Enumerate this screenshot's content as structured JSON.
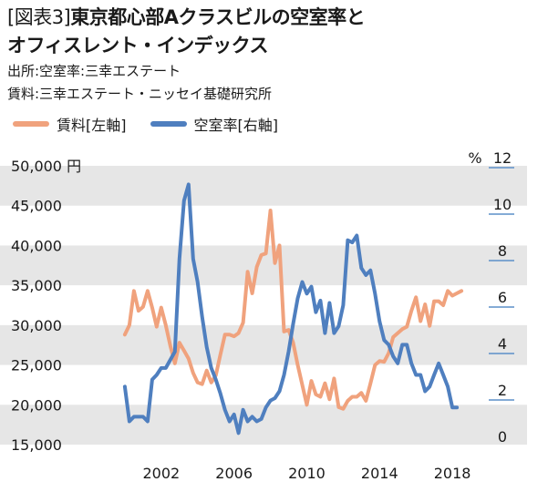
{
  "header": {
    "figure_label": "[図表3]",
    "title_line1": "東京都心部Aクラスビルの空室率と",
    "title_line2": "オフィスレント・インデックス",
    "source_line1": "出所:空室率:三幸エステート",
    "source_line2": "賃料:三幸エステート・ニッセイ基礎研究所"
  },
  "colors": {
    "rent": "#f0a27d",
    "vacancy": "#4f7fbf",
    "band": "#e6e6e6",
    "right_tick_line": "#5b8fc9"
  },
  "chart_data": {
    "type": "line",
    "legend": [
      {
        "label": "賃料[左軸]",
        "color": "#f0a27d"
      },
      {
        "label": "空室率[右軸]",
        "color": "#4f7fbf"
      }
    ],
    "left_axis": {
      "unit": "円",
      "ylim": [
        15000,
        50000
      ],
      "ticks": [
        "15,000",
        "20,000",
        "25,000",
        "30,000",
        "35,000",
        "40,000",
        "45,000",
        "50,000 円"
      ]
    },
    "right_axis": {
      "unit": "%",
      "ylim": [
        0,
        12
      ],
      "ticks": [
        "0",
        "2",
        "4",
        "6",
        "8",
        "10",
        "12"
      ],
      "unit_label": "%"
    },
    "x_axis": {
      "xlim": [
        1998.5,
        2020.0
      ],
      "ticks": [
        "2002",
        "2006",
        "2010",
        "2014",
        "2018"
      ]
    },
    "series": [
      {
        "name": "賃料[左軸]",
        "axis": "left",
        "color": "#f0a27d",
        "points": [
          [
            2000.0,
            28800
          ],
          [
            2000.25,
            30000
          ],
          [
            2000.5,
            34300
          ],
          [
            2000.75,
            31800
          ],
          [
            2001.0,
            32300
          ],
          [
            2001.25,
            34300
          ],
          [
            2001.5,
            32200
          ],
          [
            2001.75,
            29800
          ],
          [
            2002.0,
            32200
          ],
          [
            2002.25,
            30000
          ],
          [
            2002.5,
            27400
          ],
          [
            2002.75,
            25200
          ],
          [
            2003.0,
            27800
          ],
          [
            2003.25,
            26800
          ],
          [
            2003.5,
            25800
          ],
          [
            2003.75,
            24000
          ],
          [
            2004.0,
            22800
          ],
          [
            2004.25,
            22600
          ],
          [
            2004.5,
            24300
          ],
          [
            2004.75,
            22800
          ],
          [
            2005.0,
            23700
          ],
          [
            2005.25,
            26300
          ],
          [
            2005.5,
            28800
          ],
          [
            2005.75,
            28800
          ],
          [
            2006.0,
            28600
          ],
          [
            2006.25,
            29000
          ],
          [
            2006.5,
            30300
          ],
          [
            2006.75,
            36700
          ],
          [
            2007.0,
            34000
          ],
          [
            2007.25,
            37300
          ],
          [
            2007.5,
            38800
          ],
          [
            2007.75,
            39000
          ],
          [
            2008.0,
            44400
          ],
          [
            2008.25,
            37800
          ],
          [
            2008.5,
            40000
          ],
          [
            2008.75,
            29200
          ],
          [
            2009.0,
            29400
          ],
          [
            2009.25,
            27800
          ],
          [
            2009.5,
            25000
          ],
          [
            2009.75,
            22500
          ],
          [
            2010.0,
            20000
          ],
          [
            2010.25,
            23000
          ],
          [
            2010.5,
            21300
          ],
          [
            2010.75,
            21000
          ],
          [
            2011.0,
            22700
          ],
          [
            2011.25,
            20700
          ],
          [
            2011.5,
            23300
          ],
          [
            2011.75,
            19700
          ],
          [
            2012.0,
            19500
          ],
          [
            2012.25,
            20500
          ],
          [
            2012.5,
            21000
          ],
          [
            2012.75,
            21000
          ],
          [
            2013.0,
            21500
          ],
          [
            2013.25,
            20500
          ],
          [
            2013.5,
            22700
          ],
          [
            2013.75,
            25000
          ],
          [
            2014.0,
            25500
          ],
          [
            2014.25,
            25400
          ],
          [
            2014.5,
            26500
          ],
          [
            2014.75,
            28500
          ],
          [
            2015.0,
            29000
          ],
          [
            2015.25,
            29500
          ],
          [
            2015.5,
            29800
          ],
          [
            2015.75,
            31800
          ],
          [
            2016.0,
            33500
          ],
          [
            2016.25,
            30500
          ],
          [
            2016.5,
            32600
          ],
          [
            2016.75,
            29900
          ],
          [
            2017.0,
            33000
          ],
          [
            2017.25,
            33000
          ],
          [
            2017.5,
            32500
          ],
          [
            2017.75,
            34300
          ],
          [
            2018.0,
            33700
          ],
          [
            2018.25,
            34000
          ],
          [
            2018.5,
            34300
          ]
        ]
      },
      {
        "name": "空室率[右軸]",
        "axis": "right",
        "color": "#4f7fbf",
        "points": [
          [
            2000.0,
            2.5
          ],
          [
            2000.25,
            1.0
          ],
          [
            2000.5,
            1.2
          ],
          [
            2000.75,
            1.2
          ],
          [
            2001.0,
            1.2
          ],
          [
            2001.25,
            1.0
          ],
          [
            2001.5,
            2.8
          ],
          [
            2001.75,
            3.0
          ],
          [
            2002.0,
            3.3
          ],
          [
            2002.25,
            3.3
          ],
          [
            2002.75,
            4.0
          ],
          [
            2003.0,
            8.0
          ],
          [
            2003.25,
            10.5
          ],
          [
            2003.5,
            11.2
          ],
          [
            2003.75,
            8.0
          ],
          [
            2004.0,
            7.0
          ],
          [
            2004.25,
            5.5
          ],
          [
            2004.5,
            4.2
          ],
          [
            2004.75,
            3.3
          ],
          [
            2005.0,
            2.8
          ],
          [
            2005.25,
            2.2
          ],
          [
            2005.5,
            1.5
          ],
          [
            2005.75,
            1.0
          ],
          [
            2006.0,
            1.3
          ],
          [
            2006.25,
            0.5
          ],
          [
            2006.5,
            1.5
          ],
          [
            2006.75,
            1.0
          ],
          [
            2007.0,
            1.2
          ],
          [
            2007.25,
            1.0
          ],
          [
            2007.5,
            1.1
          ],
          [
            2007.75,
            1.6
          ],
          [
            2008.0,
            1.9
          ],
          [
            2008.25,
            2.0
          ],
          [
            2008.5,
            2.3
          ],
          [
            2008.75,
            3.0
          ],
          [
            2009.0,
            4.0
          ],
          [
            2009.25,
            5.2
          ],
          [
            2009.5,
            6.3
          ],
          [
            2009.75,
            7.0
          ],
          [
            2010.0,
            6.5
          ],
          [
            2010.25,
            6.8
          ],
          [
            2010.5,
            5.7
          ],
          [
            2010.75,
            6.2
          ],
          [
            2011.0,
            4.8
          ],
          [
            2011.25,
            6.1
          ],
          [
            2011.5,
            4.8
          ],
          [
            2011.75,
            5.1
          ],
          [
            2012.0,
            6.0
          ],
          [
            2012.25,
            8.8
          ],
          [
            2012.5,
            8.7
          ],
          [
            2012.75,
            9.0
          ],
          [
            2013.0,
            7.6
          ],
          [
            2013.25,
            7.3
          ],
          [
            2013.5,
            7.5
          ],
          [
            2013.75,
            6.5
          ],
          [
            2014.0,
            5.3
          ],
          [
            2014.25,
            4.5
          ],
          [
            2014.5,
            4.3
          ],
          [
            2014.75,
            3.8
          ],
          [
            2015.0,
            3.5
          ],
          [
            2015.25,
            4.3
          ],
          [
            2015.5,
            4.3
          ],
          [
            2015.75,
            3.5
          ],
          [
            2016.0,
            3.0
          ],
          [
            2016.25,
            3.0
          ],
          [
            2016.5,
            2.3
          ],
          [
            2016.75,
            2.5
          ],
          [
            2017.0,
            3.0
          ],
          [
            2017.25,
            3.5
          ],
          [
            2017.5,
            3.0
          ],
          [
            2017.75,
            2.5
          ],
          [
            2018.0,
            1.6
          ],
          [
            2018.25,
            1.6
          ]
        ]
      }
    ],
    "grid": "alternating horizontal bands"
  }
}
